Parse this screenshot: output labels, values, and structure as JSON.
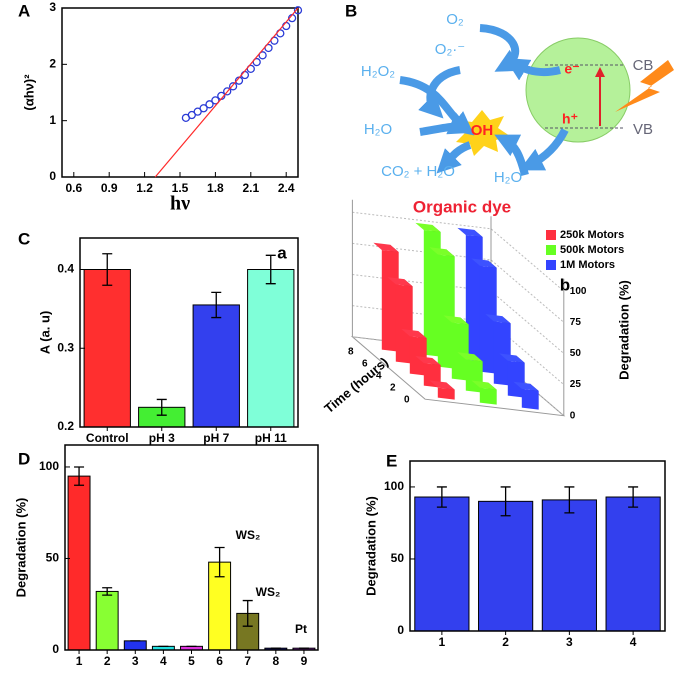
{
  "chart_data": [
    {
      "panel": "A",
      "type": "scatter",
      "xlabel": "hν",
      "ylabel": "(αhν)²",
      "xlim": [
        0.5,
        2.5
      ],
      "ylim": [
        0,
        3
      ],
      "xticks": [
        0.6,
        0.9,
        1.2,
        1.5,
        1.8,
        2.1,
        2.4
      ],
      "yticks": [
        0,
        1,
        2,
        3
      ],
      "series": [
        {
          "color": "#2a3bd6",
          "marker": "circle",
          "x": [
            1.55,
            1.6,
            1.65,
            1.7,
            1.75,
            1.8,
            1.85,
            1.9,
            1.95,
            2.0,
            2.05,
            2.1,
            2.15,
            2.2,
            2.25,
            2.3,
            2.35,
            2.4,
            2.45,
            2.5
          ],
          "values": [
            1.05,
            1.1,
            1.16,
            1.22,
            1.29,
            1.36,
            1.44,
            1.52,
            1.61,
            1.71,
            1.81,
            1.92,
            2.04,
            2.16,
            2.29,
            2.42,
            2.55,
            2.68,
            2.82,
            2.96
          ]
        },
        {
          "color": "#ff2a2a",
          "marker": "line",
          "x": [
            1.29,
            2.5
          ],
          "values": [
            0,
            3
          ]
        }
      ]
    },
    {
      "panel": "C",
      "type": "bar",
      "ylabel": "A (a. u)",
      "annotation": "a",
      "categories": [
        "Control",
        "pH 3",
        "pH 7",
        "pH 11"
      ],
      "values": [
        0.4,
        0.225,
        0.355,
        0.4
      ],
      "errors": [
        0.02,
        0.01,
        0.016,
        0.018
      ],
      "colors": [
        "#ff2f2f",
        "#44ee33",
        "#3340ee",
        "#7fffd8"
      ],
      "ylim": [
        0.2,
        0.44
      ],
      "yticks": [
        0.2,
        0.3,
        0.4
      ]
    },
    {
      "type": "bar3d",
      "annotation": "b",
      "xlabel": "Time (hours)",
      "zlabel": "Degradation (%)",
      "x": [
        0,
        2,
        4,
        6,
        8
      ],
      "xticks": [
        0,
        2,
        4,
        6,
        8
      ],
      "zlim": [
        0,
        110
      ],
      "zticks": [
        0,
        25,
        50,
        75,
        100
      ],
      "grid": true,
      "legend": "top-right",
      "series": [
        {
          "name": "250k Motors",
          "color": "#ff2f3f",
          "values": [
            8,
            18,
            30,
            62,
            80
          ]
        },
        {
          "name": "500k Motors",
          "color": "#66ff22",
          "values": [
            12,
            25,
            45,
            90,
            100
          ]
        },
        {
          "name": "1M Motors",
          "color": "#3344ff",
          "values": [
            15,
            28,
            50,
            85,
            100
          ]
        }
      ]
    },
    {
      "panel": "D",
      "type": "bar",
      "ylabel": "Degradation (%)",
      "annotations": [
        "WS₂",
        "WS₂",
        "Pt"
      ],
      "categories": [
        "1",
        "2",
        "3",
        "4",
        "5",
        "6",
        "7",
        "8",
        "9"
      ],
      "values": [
        95,
        32,
        5,
        2,
        2,
        48,
        20,
        1,
        1
      ],
      "errors": [
        5,
        2,
        0,
        0,
        0,
        8,
        7,
        0,
        0
      ],
      "colors": [
        "#ff2a2a",
        "#88ff33",
        "#2233ee",
        "#22e0e0",
        "#dd33dd",
        "#ffff22",
        "#777722",
        "#1a1a88",
        "#8a2ab0"
      ],
      "ylim": [
        0,
        112
      ],
      "yticks": [
        0,
        50,
        100
      ]
    },
    {
      "panel": "E",
      "type": "bar",
      "ylabel": "Degradation (%)",
      "categories": [
        "1",
        "2",
        "3",
        "4"
      ],
      "values": [
        93,
        90,
        91,
        93
      ],
      "errors": [
        7,
        10,
        9,
        7
      ],
      "colors": [
        "#3340ee",
        "#3340ee",
        "#3340ee",
        "#3340ee"
      ],
      "ylim": [
        0,
        118
      ],
      "yticks": [
        0,
        50,
        100
      ]
    }
  ],
  "diagram": {
    "panel": "B",
    "labels": [
      "O₂",
      "O₂·⁻",
      "H₂O₂",
      "H₂O",
      "OH",
      "CO₂ + H₂O",
      "H₂O",
      "e⁻",
      "h⁺",
      "CB",
      "VB"
    ],
    "caption": "Organic dye"
  }
}
